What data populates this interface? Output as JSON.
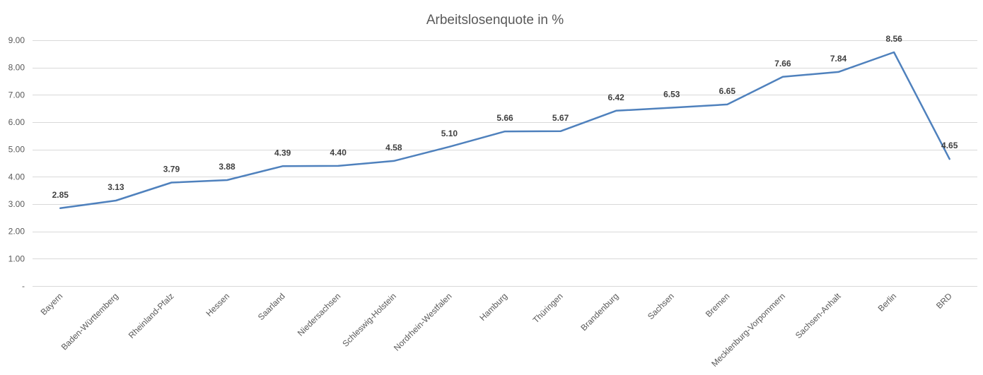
{
  "chart_data": {
    "type": "line",
    "title": "Arbeitslosenquote in %",
    "xlabel": "",
    "ylabel": "",
    "categories": [
      "Bayern",
      "Baden-Württemberg",
      "Rheinland-Pfalz",
      "Hessen",
      "Saarland",
      "Niedersachsen",
      "Schleswig-Holstein",
      "Nordrhein-Westfalen",
      "Hamburg",
      "Thüringen",
      "Brandenburg",
      "Sachsen",
      "Bremen",
      "Mecklenburg-Vorpommern",
      "Sachsen-Anhalt",
      "Berlin",
      "BRD"
    ],
    "series": [
      {
        "values": [
          2.85,
          3.13,
          3.79,
          3.88,
          4.39,
          4.4,
          4.58,
          5.1,
          5.66,
          5.67,
          6.42,
          6.53,
          6.65,
          7.66,
          7.84,
          8.56,
          4.65
        ],
        "color": "#4f81bd",
        "data_labels": [
          "2.85",
          "3.13",
          "3.79",
          "3.88",
          "4.39",
          "4.40",
          "4.58",
          "5.10",
          "5.66",
          "5.67",
          "6.42",
          "6.53",
          "6.65",
          "7.66",
          "7.84",
          "8.56",
          "4.65"
        ]
      }
    ],
    "ylim": [
      0,
      9
    ],
    "y_ticks": [
      0,
      1,
      2,
      3,
      4,
      5,
      6,
      7,
      8,
      9
    ],
    "y_tick_labels": [
      "-",
      "1.00",
      "2.00",
      "3.00",
      "4.00",
      "5.00",
      "6.00",
      "7.00",
      "8.00",
      "9.00"
    ],
    "grid": true,
    "legend": "none",
    "gridline_color": "#d9d9d9",
    "text_color": "#595959",
    "label_color": "#404040"
  }
}
